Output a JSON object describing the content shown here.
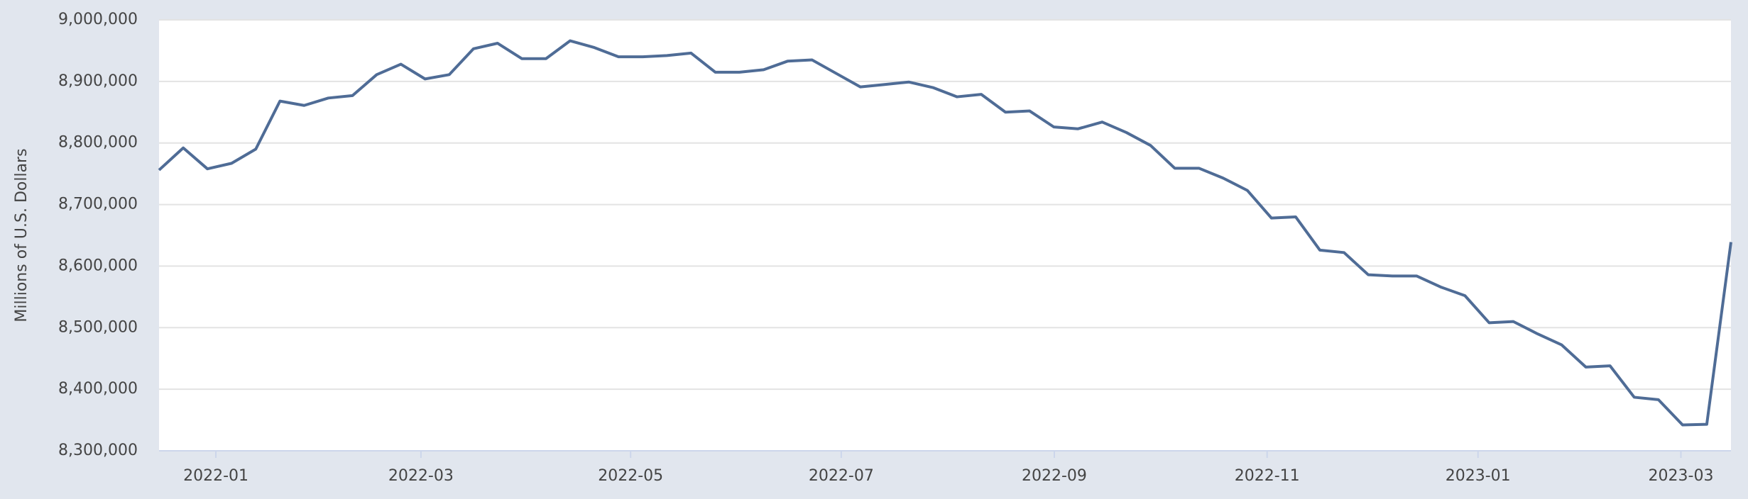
{
  "chart_data": {
    "type": "line",
    "y_label": "Millions of U.S. Dollars",
    "color": "#4f6c96",
    "grid": true,
    "xlim": [
      0,
      65
    ],
    "xticks": [
      {
        "value": 2.35,
        "label": "2022-01"
      },
      {
        "value": 10.83,
        "label": "2022-03"
      },
      {
        "value": 19.5,
        "label": "2022-05"
      },
      {
        "value": 28.21,
        "label": "2022-07"
      },
      {
        "value": 37.02,
        "label": "2022-09"
      },
      {
        "value": 45.82,
        "label": "2022-11"
      },
      {
        "value": 54.54,
        "label": "2023-01"
      },
      {
        "value": 62.93,
        "label": "2023-03"
      }
    ],
    "ylim": [
      8300000,
      9000000
    ],
    "yticks": [
      {
        "value": 8300000,
        "label": "8,300,000"
      },
      {
        "value": 8400000,
        "label": "8,400,000"
      },
      {
        "value": 8500000,
        "label": "8,500,000"
      },
      {
        "value": 8600000,
        "label": "8,600,000"
      },
      {
        "value": 8700000,
        "label": "8,700,000"
      },
      {
        "value": 8800000,
        "label": "8,800,000"
      },
      {
        "value": 8900000,
        "label": "8,900,000"
      },
      {
        "value": 9000000,
        "label": "9,000,000"
      }
    ],
    "values": [
      8756000,
      8792000,
      8758000,
      8767000,
      8790000,
      8868000,
      8861000,
      8873000,
      8877000,
      8911000,
      8928000,
      8904000,
      8911000,
      8953000,
      8962000,
      8937000,
      8937000,
      8966000,
      8955000,
      8940000,
      8940000,
      8942000,
      8946000,
      8915000,
      8915000,
      8919000,
      8933000,
      8935000,
      8913000,
      8891000,
      8895000,
      8899000,
      8890000,
      8875000,
      8879000,
      8850000,
      8852000,
      8826000,
      8823000,
      8834000,
      8817000,
      8796000,
      8759000,
      8759000,
      8743000,
      8723000,
      8678000,
      8680000,
      8626000,
      8622000,
      8586000,
      8584000,
      8584000,
      8566000,
      8552000,
      8508000,
      8510000,
      8490000,
      8472000,
      8436000,
      8438000,
      8387000,
      8383000,
      8342000,
      8343000,
      8639000
    ]
  }
}
